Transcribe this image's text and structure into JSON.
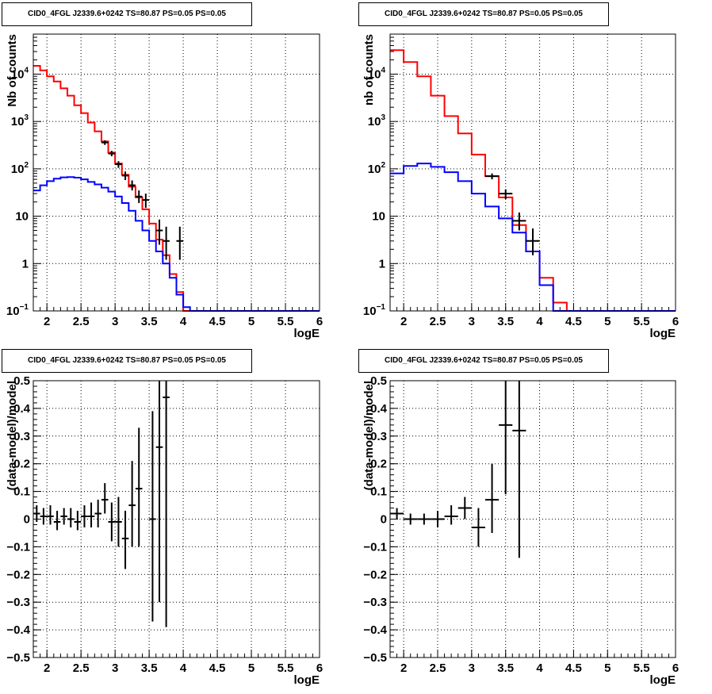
{
  "chart_data": [
    {
      "type": "line",
      "title": "CID0_4FGL J2339.6+0242 TS=80.87 PS=0.05 PS=0.05",
      "xlabel": "logE",
      "ylabel": "Nb of counts",
      "xlim": [
        1.8,
        6.0
      ],
      "ylim": [
        0.1,
        70000
      ],
      "yscale": "log",
      "grid": true,
      "x_ticks": [
        "2",
        "2.5",
        "3",
        "3.5",
        "4",
        "4.5",
        "5",
        "5.5",
        "6"
      ],
      "y_ticks": [
        {
          "value": 0.1,
          "label": "10",
          "exp": "−1"
        },
        {
          "value": 1,
          "label": "1",
          "exp": ""
        },
        {
          "value": 10,
          "label": "10",
          "exp": ""
        },
        {
          "value": 100,
          "label": "10",
          "exp": "2"
        },
        {
          "value": 1000,
          "label": "10",
          "exp": "3"
        },
        {
          "value": 10000,
          "label": "10",
          "exp": "4"
        }
      ],
      "bin_edges_start": 1.8,
      "bin_width": 0.1,
      "series": [
        {
          "color": "#ff0000",
          "values": [
            15000,
            12000,
            9000,
            7000,
            5000,
            3500,
            2200,
            1500,
            950,
            620,
            380,
            220,
            130,
            75,
            42,
            25,
            14,
            7,
            3.2,
            1.5,
            0.6,
            0.25,
            0.1,
            0.1,
            0.1,
            0.1,
            0.1,
            0.1,
            0.1,
            0.1,
            0.1,
            0.1,
            0.1,
            0.1,
            0.1,
            0.1,
            0.1,
            0.1,
            0.1,
            0.1,
            0.1,
            0.1
          ]
        },
        {
          "color": "#0000ff",
          "values": [
            35,
            45,
            55,
            62,
            66,
            67,
            65,
            60,
            53,
            47,
            40,
            33,
            26,
            19,
            13,
            8,
            5,
            3,
            1.8,
            1,
            0.5,
            0.22,
            0.12,
            0.1,
            0.1,
            0.1,
            0.1,
            0.1,
            0.1,
            0.1,
            0.1,
            0.1,
            0.1,
            0.1,
            0.1,
            0.1,
            0.1,
            0.1,
            0.1,
            0.1,
            0.1,
            0.1
          ]
        }
      ],
      "data_points": [
        {
          "x": 2.85,
          "y": 360,
          "ylo": 320,
          "yhi": 400
        },
        {
          "x": 2.95,
          "y": 210,
          "ylo": 185,
          "yhi": 240
        },
        {
          "x": 3.05,
          "y": 125,
          "ylo": 105,
          "yhi": 145
        },
        {
          "x": 3.15,
          "y": 72,
          "ylo": 58,
          "yhi": 88
        },
        {
          "x": 3.25,
          "y": 45,
          "ylo": 35,
          "yhi": 57
        },
        {
          "x": 3.35,
          "y": 26,
          "ylo": 19,
          "yhi": 35
        },
        {
          "x": 3.45,
          "y": 22,
          "ylo": 15,
          "yhi": 30
        },
        {
          "x": 3.65,
          "y": 5,
          "ylo": 2.5,
          "yhi": 8.5
        },
        {
          "x": 3.75,
          "y": 3,
          "ylo": 1.2,
          "yhi": 6
        },
        {
          "x": 3.95,
          "y": 3,
          "ylo": 1.2,
          "yhi": 6
        }
      ]
    },
    {
      "type": "line",
      "title": "CID0_4FGL J2339.6+0242 TS=80.87 PS=0.05 PS=0.05",
      "xlabel": "logE",
      "ylabel": "nb of counts",
      "xlim": [
        1.8,
        6.0
      ],
      "ylim": [
        0.1,
        70000
      ],
      "yscale": "log",
      "grid": true,
      "x_ticks": [
        "2",
        "2.5",
        "3",
        "3.5",
        "4",
        "4.5",
        "5",
        "5.5",
        "6"
      ],
      "y_ticks": [
        {
          "value": 0.1,
          "label": "10",
          "exp": "−1"
        },
        {
          "value": 1,
          "label": "1",
          "exp": ""
        },
        {
          "value": 10,
          "label": "10",
          "exp": ""
        },
        {
          "value": 100,
          "label": "10",
          "exp": "2"
        },
        {
          "value": 1000,
          "label": "10",
          "exp": "3"
        },
        {
          "value": 10000,
          "label": "10",
          "exp": "4"
        }
      ],
      "bin_edges_start": 1.8,
      "bin_width": 0.2,
      "series": [
        {
          "color": "#ff0000",
          "values": [
            32000,
            18000,
            9000,
            3500,
            1300,
            560,
            200,
            70,
            25,
            6.5,
            1.8,
            0.5,
            0.15,
            0.1,
            0.1,
            0.1,
            0.1,
            0.1,
            0.1,
            0.1,
            0.1
          ]
        },
        {
          "color": "#0000ff",
          "values": [
            80,
            115,
            130,
            110,
            85,
            55,
            30,
            16,
            9,
            4.5,
            1.8,
            0.35,
            0.1,
            0.1,
            0.1,
            0.1,
            0.1,
            0.1,
            0.1,
            0.1,
            0.1
          ]
        }
      ],
      "data_points": [
        {
          "x": 3.3,
          "y": 70,
          "ylo": 60,
          "yhi": 80
        },
        {
          "x": 3.5,
          "y": 30,
          "ylo": 23,
          "yhi": 37
        },
        {
          "x": 3.7,
          "y": 8,
          "ylo": 5,
          "yhi": 12
        },
        {
          "x": 3.9,
          "y": 3,
          "ylo": 1.5,
          "yhi": 5.5
        }
      ]
    },
    {
      "type": "scatter",
      "title": "CID0_4FGL J2339.6+0242 TS=80.87 PS=0.05 PS=0.05",
      "xlabel": "logE",
      "ylabel": "(data-model)/model",
      "xlim": [
        1.8,
        6.0
      ],
      "ylim": [
        -0.5,
        0.5
      ],
      "grid": true,
      "x_ticks": [
        "2",
        "2.5",
        "3",
        "3.5",
        "4",
        "4.5",
        "5",
        "5.5",
        "6"
      ],
      "y_ticks": [
        "−0.5",
        "−0.4",
        "−0.3",
        "−0.2",
        "−0.1",
        "0",
        "0.1",
        "0.2",
        "0.3",
        "0.4",
        "0.5"
      ],
      "bin_width": 0.1,
      "points": [
        {
          "x": 1.85,
          "y": 0.02,
          "ylo": -0.01,
          "yhi": 0.05
        },
        {
          "x": 1.95,
          "y": 0.01,
          "ylo": -0.02,
          "yhi": 0.04
        },
        {
          "x": 2.05,
          "y": 0.01,
          "ylo": -0.02,
          "yhi": 0.05
        },
        {
          "x": 2.15,
          "y": -0.01,
          "ylo": -0.04,
          "yhi": 0.03
        },
        {
          "x": 2.25,
          "y": 0.01,
          "ylo": -0.02,
          "yhi": 0.04
        },
        {
          "x": 2.35,
          "y": 0.0,
          "ylo": -0.03,
          "yhi": 0.04
        },
        {
          "x": 2.45,
          "y": -0.01,
          "ylo": -0.04,
          "yhi": 0.03
        },
        {
          "x": 2.55,
          "y": 0.01,
          "ylo": -0.03,
          "yhi": 0.05
        },
        {
          "x": 2.65,
          "y": 0.01,
          "ylo": -0.03,
          "yhi": 0.06
        },
        {
          "x": 2.75,
          "y": 0.02,
          "ylo": -0.03,
          "yhi": 0.07
        },
        {
          "x": 2.85,
          "y": 0.07,
          "ylo": 0.02,
          "yhi": 0.13
        },
        {
          "x": 2.95,
          "y": -0.01,
          "ylo": -0.08,
          "yhi": 0.06
        },
        {
          "x": 3.05,
          "y": -0.01,
          "ylo": -0.1,
          "yhi": 0.08
        },
        {
          "x": 3.15,
          "y": -0.07,
          "ylo": -0.18,
          "yhi": 0.03
        },
        {
          "x": 3.25,
          "y": 0.05,
          "ylo": -0.1,
          "yhi": 0.21
        },
        {
          "x": 3.35,
          "y": 0.11,
          "ylo": -0.1,
          "yhi": 0.33
        },
        {
          "x": 3.55,
          "y": 0.0,
          "ylo": -0.37,
          "yhi": 0.39
        },
        {
          "x": 3.65,
          "y": 0.26,
          "ylo": -0.3,
          "yhi": 0.5
        },
        {
          "x": 3.75,
          "y": 0.44,
          "ylo": -0.39,
          "yhi": 0.5
        }
      ]
    },
    {
      "type": "scatter",
      "title": "CID0_4FGL J2339.6+0242 TS=80.87 PS=0.05 PS=0.05",
      "xlabel": "logE",
      "ylabel": "(data-model)/model",
      "xlim": [
        1.8,
        6.0
      ],
      "ylim": [
        -0.5,
        0.5
      ],
      "grid": true,
      "x_ticks": [
        "2",
        "2.5",
        "3",
        "3.5",
        "4",
        "4.5",
        "5",
        "5.5",
        "6"
      ],
      "y_ticks": [
        "−0.5",
        "−0.4",
        "−0.3",
        "−0.2",
        "−0.1",
        "0",
        "0.1",
        "0.2",
        "0.3",
        "0.4",
        "0.5"
      ],
      "bin_width": 0.2,
      "points": [
        {
          "x": 1.9,
          "y": 0.02,
          "ylo": 0.0,
          "yhi": 0.04
        },
        {
          "x": 2.1,
          "y": 0.0,
          "ylo": -0.02,
          "yhi": 0.02
        },
        {
          "x": 2.3,
          "y": 0.0,
          "ylo": -0.02,
          "yhi": 0.02
        },
        {
          "x": 2.5,
          "y": 0.0,
          "ylo": -0.03,
          "yhi": 0.03
        },
        {
          "x": 2.7,
          "y": 0.01,
          "ylo": -0.02,
          "yhi": 0.05
        },
        {
          "x": 2.9,
          "y": 0.04,
          "ylo": 0.0,
          "yhi": 0.08
        },
        {
          "x": 3.1,
          "y": -0.03,
          "ylo": -0.1,
          "yhi": 0.04
        },
        {
          "x": 3.3,
          "y": 0.07,
          "ylo": -0.05,
          "yhi": 0.2
        },
        {
          "x": 3.5,
          "y": 0.34,
          "ylo": 0.09,
          "yhi": 0.5
        },
        {
          "x": 3.7,
          "y": 0.32,
          "ylo": -0.14,
          "yhi": 0.5
        }
      ]
    }
  ]
}
